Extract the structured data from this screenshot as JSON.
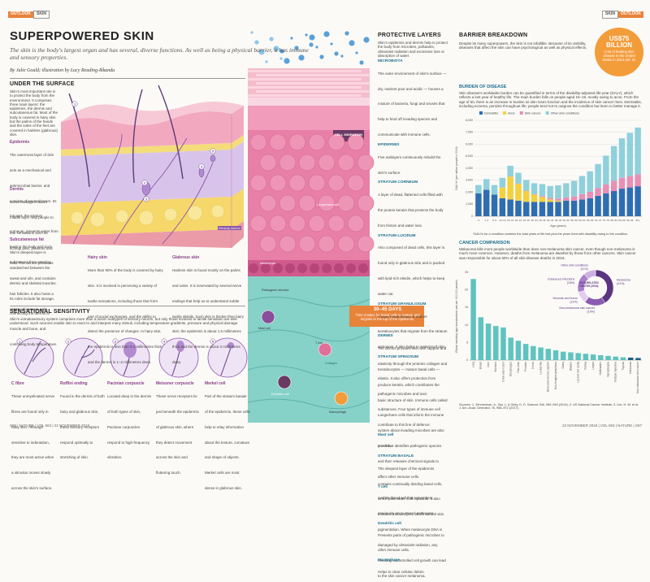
{
  "header": {
    "left_tags": [
      "OUTLOOK",
      "SKIN"
    ],
    "right_tags": [
      "SKIN",
      "OUTLOOK"
    ]
  },
  "title": "SUPERPOWERED SKIN",
  "intro": "The skin is the body's largest organ and has several, diverse functions. As well as being a physical barrier, it has immune and sensory properties.",
  "byline": "By Julie Gould; illustration by Lucy Reading-Ikkanda",
  "under_the_surface": {
    "heading": "UNDER THE SURFACE",
    "text": "Skin's most important role is to protect the body from the environment. It comprises three main layers: the epidermis, the dermis and subcutaneous fat. Most of the body is covered in hairy skin but the palms of the hands and the soles of the feet are covered in hairless (glabrous) skin.",
    "layers": [
      {
        "name": "Epidermis",
        "text": "The outermost layer of skin acts as a mechanical and antimicrobial barrier, and consists of several layers. Its top part, the stratum corneum, prevents water from leaving the body and toxic substances from entering."
      },
      {
        "name": "Dermis",
        "text": "Nerve endings in skin's middle layer help people to feel sensations such as itching, pain, pleasure and heat. The dermis produces sweat and oils, and contains hair follicles. It also hosts a variety of immune cells."
      },
      {
        "name": "Subcutaneous fat",
        "text": "Skin's deepest layer is sandwiched between the dermis and skeletal muscles. Its roles include fat storage, connecting the dermis to muscle and bone, and controlling body temperature."
      }
    ],
    "skin_types": [
      {
        "name": "Hairy skin",
        "text": "More than 90% of the body is covered by hairy skin. It is involved in perceiving a variety of tactile sensations, including those that form part of social exchanges, and the ability to detect the presence of changes. In hairy skin, the epidermis is less than 0.1 millimetres thick and the dermis is 1–2 millimetres deep."
      },
      {
        "name": "Glabrous skin",
        "text": "Hairless skin is found mostly on the palms and soles. It is innervated by several nerve endings that help us to understand subtle tactile details. Such skin is thicker than hairy skin; the epidermis is about 1.5 millimetres thick and the dermis is about 3 millimetres deep."
      }
    ],
    "illustration_label": "Sensory neuron"
  },
  "sensational_sensitivity": {
    "heading": "SENSATIONAL SENSITIVITY",
    "text": "Skin's somatosensory system comprises more than a dozen subtypes of sensory neuron, but only those involved in tactile sensation are well understood. Such neurons enable skin to react to and interpret many stimuli, including temperature gradients, pressure and physical damage.",
    "receptors": [
      {
        "number": "1",
        "name": "C fibre",
        "text": "These unmyelinated nerve fibres are found only in hairy skin. Although sensitive to indentation, they are most active when a stimulus moves slowly across the skin's surface."
      },
      {
        "number": "2",
        "name": "Ruffini ending",
        "text": "Found in the dermis of both hairy and glabrous skin, these sensory receptors respond optimally to stretching of skin."
      },
      {
        "number": "3",
        "name": "Pacinian corpuscle",
        "text": "Located deep in the dermis of both types of skin, Pacinian corpuscles respond to high-frequency vibration."
      },
      {
        "number": "4",
        "name": "Meissner corpuscle",
        "text": "These nerve receptors lie just beneath the epidermis of glabrous skin, where they detect movement across the skin and fluttering touch."
      },
      {
        "number": "5",
        "name": "Merkel cell",
        "text": "Part of the stratum basale of the epidermis, these cells help to relay information about the texture, curvature and shape of objects. Merkel cells are most dense in glabrous skin."
      }
    ]
  },
  "protective_layers": {
    "heading": "PROTECTIVE LAYERS",
    "text": "Skin's epidermis and dermis help to protect the body from microbes, pollutants, ultraviolet radiation and excessive loss or absorption of water.",
    "sections": [
      {
        "name": "MICROBIOTA",
        "text": "The outer environment of skin's surface — dry, nutrient poor and acidic — houses a mixture of bacteria, fungi and viruses that help to fend off invading species and communicate with immune cells."
      },
      {
        "name": "EPIDERMIS",
        "text": "Five sublayers continuously rebuild the skin's surface."
      },
      {
        "name": "STRATUM CORNEUM",
        "text": "A layer of dead, flattened cells filled with the protein keratin that protects the body from friction and water loss."
      },
      {
        "name": "STRATUM LUCIDUM",
        "text": "Also composed of dead cells, this layer is found only in glabrous skin and is packed with lipid-rich eleidin, which helps to keep water out."
      },
      {
        "name": "STRATUM GRANULOSUM",
        "text": "A layer made mostly of mature keratinocytes that migrate from the stratum spinosum. It also helps to waterproof skin."
      },
      {
        "name": "STRATUM SPINOSUM",
        "text": "Keratinocytes — mature basal cells — produce keratin, which contributes the basic structure of skin. Immune cells called Langerhans cells that inform the immune system about invading microbes are also present."
      },
      {
        "name": "STRATUM BASALE",
        "text": "The deepest layer of the epidermis contains continually dividing basal cells, which push older cells upwards. It also contains melanocytes, which control skin pigmentation. When melanocyte DNA is damaged by ultraviolet radiation, any resulting uncontrolled cell growth can lead to the skin cancer melanoma."
      }
    ],
    "callout": {
      "value": "30–45 DAYS",
      "text": "Time it takes for basal cells to mature and migrate to the top of the epidermis."
    },
    "dermis": {
      "name": "DERMIS",
      "text": "The dermis provides skin with support and elasticity through the proteins collagen and elastin. It also offers protection from pathogenic microbes and toxic substances. Four types of immune cell contribute to this line of defence:",
      "cells": [
        {
          "name": "Mast cell",
          "text": "A cell that identifies pathogenic species and then releases chemical signals to affect other immune cells."
        },
        {
          "name": "T cell",
          "text": "A white blood cell that remembers previously encountered pathogens."
        },
        {
          "name": "Dendritic cell",
          "text": "Presents parts of pathogenic microbes to other immune cells."
        },
        {
          "name": "Macrophage",
          "text": "Helps to clear cellular debris."
        }
      ]
    },
    "illustration_labels": [
      "CELL MIGRATION",
      "Langerhans cell",
      "Melanocyte",
      "Pathogenic microbe",
      "Collagen",
      "Mast cell",
      "T cell",
      "Dendritic cell",
      "Macrophage"
    ]
  },
  "barrier_breakdown": {
    "heading": "BARRIER BREAKDOWN",
    "text": "Despite its many superpowers, the skin is not infallible. Because of its visibility, diseases that affect the skin can have psychological as well as physical effects.",
    "callout": {
      "value": "US$75 BILLION",
      "text": "Cost of treating skin disease in the United States in 2013 (ref. 3)."
    },
    "burden_heading": "BURDEN OF DISEASE",
    "burden_text": "Skin disease's worldwide burden can be quantified in terms of the disability-adjusted life-year (DALY), which reflects a lost year of healthy life. The main burden falls on people aged 15–19, mostly owing to acne. From the age of 50, there is an increase in burden as skin loses function and the incidence of skin cancer rises. Dermatitis, including eczema, persists throughout life; people tend not to outgrow the condition but learn to better manage it.",
    "cancer_heading": "CANCER COMPARISON",
    "cancer_text": "Melanoma kills more people worldwide than does non-melanoma skin cancer, even though non-melanoma is much more common. However, deaths from melanoma are dwarfed by those from other cancers. Skin cancer was responsible for about 60% of all skin-disease deaths in 2016.",
    "sources": "Sources: 1. Zimmerman, A., Bai, L. & Ginty, D. D. Science 346, 950–954 (2014); 2. US National Cancer Institute; 3. Lim, H. W. et al. J. Am. Acad. Dermatol. 76, 958–972 (2017)."
  },
  "footer": {
    "left": "S86 | NATURE | VOL 563 | 22 NOVEMBER 2018",
    "right": "22 NOVEMBER 2018 | VOL 563 | NATURE | S87"
  },
  "chart_data": [
    {
      "type": "bar",
      "x_label": "Age (years)",
      "y_label": "DALYs* (per million people in 2016)",
      "note": "*DALYs for a condition combine the total years of life lost plus the years lived with disability owing to the condition.",
      "legend": "top",
      "categories": [
        "<1",
        "1–4",
        "5–9",
        "10–14",
        "15–19",
        "20–24",
        "25–29",
        "30–34",
        "35–39",
        "40–44",
        "45–49",
        "50–54",
        "55–59",
        "60–64",
        "65–69",
        "70–74",
        "75–79",
        "80–84",
        "85–89",
        "90–94",
        "95+"
      ],
      "series": [
        {
          "name": "Dermatitis",
          "color": "#2f6db3",
          "values": [
            1900,
            2200,
            1800,
            1500,
            1400,
            1300,
            1200,
            1200,
            1200,
            1200,
            1200,
            1300,
            1300,
            1400,
            1500,
            1700,
            1900,
            2100,
            2300,
            2400,
            2500
          ]
        },
        {
          "name": "Acne",
          "color": "#f4d03f",
          "values": [
            0,
            0,
            0,
            900,
            1900,
            1400,
            900,
            600,
            400,
            200,
            100,
            0,
            0,
            0,
            0,
            0,
            0,
            0,
            0,
            0,
            0
          ]
        },
        {
          "name": "Skin cancer",
          "color": "#e98fb4",
          "values": [
            0,
            0,
            0,
            0,
            10,
            20,
            30,
            50,
            80,
            120,
            170,
            250,
            350,
            450,
            550,
            650,
            750,
            850,
            900,
            950,
            1000
          ]
        },
        {
          "name": "Other skin conditions",
          "color": "#8fd0dc",
          "values": [
            700,
            900,
            800,
            800,
            900,
            900,
            900,
            900,
            1000,
            1000,
            1100,
            1200,
            1300,
            1500,
            1700,
            2000,
            2400,
            2900,
            3300,
            3600,
            3900
          ]
        }
      ],
      "ylim": [
        0,
        8000
      ],
      "yticks": [
        0,
        {
          "value": 1000,
          "label": "1,000"
        },
        {
          "value": 2000,
          "label": "2,000"
        },
        {
          "value": 3000,
          "label": "3,000"
        },
        {
          "value": 4000,
          "label": "4,000"
        },
        {
          "value": 5000,
          "label": "5,000"
        },
        {
          "value": 6000,
          "label": "6,000"
        },
        {
          "value": 7000,
          "label": "7,000"
        },
        {
          "value": 8000,
          "label": "8,000"
        }
      ],
      "grid": true
    },
    {
      "type": "bar",
      "y_label": "Global mortality (age-standardized rate per 100,000 people)",
      "categories": [
        "Lung",
        "Breast",
        "Liver",
        "Stomach",
        "Colon and rectum",
        "Oesophagus",
        "Pancreas",
        "Prostate",
        "Cervix",
        "Leukaemia",
        "Brain and nervous system",
        "Non-Hodgkin lymphoma",
        "Ovary",
        "Bladder",
        "Lip and oral cavity",
        "Kidney",
        "Larynx",
        "Gallbladder",
        "Nasopharynx",
        "Multiple myeloma",
        "Thyroid",
        "Melanoma",
        "Non-melanoma skin cancer"
      ],
      "values": [
        23.1,
        12.2,
        10.4,
        9.7,
        9.3,
        6.4,
        5.5,
        4.6,
        4.0,
        3.6,
        3.2,
        2.8,
        2.4,
        2.2,
        2.0,
        1.8,
        1.6,
        1.4,
        1.2,
        1.0,
        0.8,
        0.7,
        0.6
      ],
      "colors": [
        "#5fc3c0",
        "#5fc3c0",
        "#5fc3c0",
        "#5fc3c0",
        "#5fc3c0",
        "#5fc3c0",
        "#5fc3c0",
        "#5fc3c0",
        "#5fc3c0",
        "#5fc3c0",
        "#5fc3c0",
        "#5fc3c0",
        "#5fc3c0",
        "#5fc3c0",
        "#5fc3c0",
        "#5fc3c0",
        "#5fc3c0",
        "#5fc3c0",
        "#5fc3c0",
        "#5fc3c0",
        "#5fc3c0",
        "#1d5f86",
        "#1d5f86"
      ],
      "ylim": [
        0,
        25
      ],
      "yticks": [
        0,
        5,
        10,
        15,
        20,
        25
      ],
      "grid": false
    },
    {
      "type": "pie",
      "donut": true,
      "title": "SKIN-RELATED DEATHS (2016)",
      "categories": [
        "Melanoma",
        "Non-melanoma skin cancer",
        "Wounds and burns",
        "Cutaneous infections",
        "Other skin conditions"
      ],
      "values": [
        41,
        19,
        11,
        18,
        11
      ],
      "value_labels": [
        "(41%)",
        "(19%)",
        "(11%)",
        "(18%)",
        "(11%)"
      ],
      "colors": [
        "#5b3580",
        "#8a5bb0",
        "#e3cdef",
        "#a97fcb",
        "#cdb0e2"
      ]
    }
  ]
}
